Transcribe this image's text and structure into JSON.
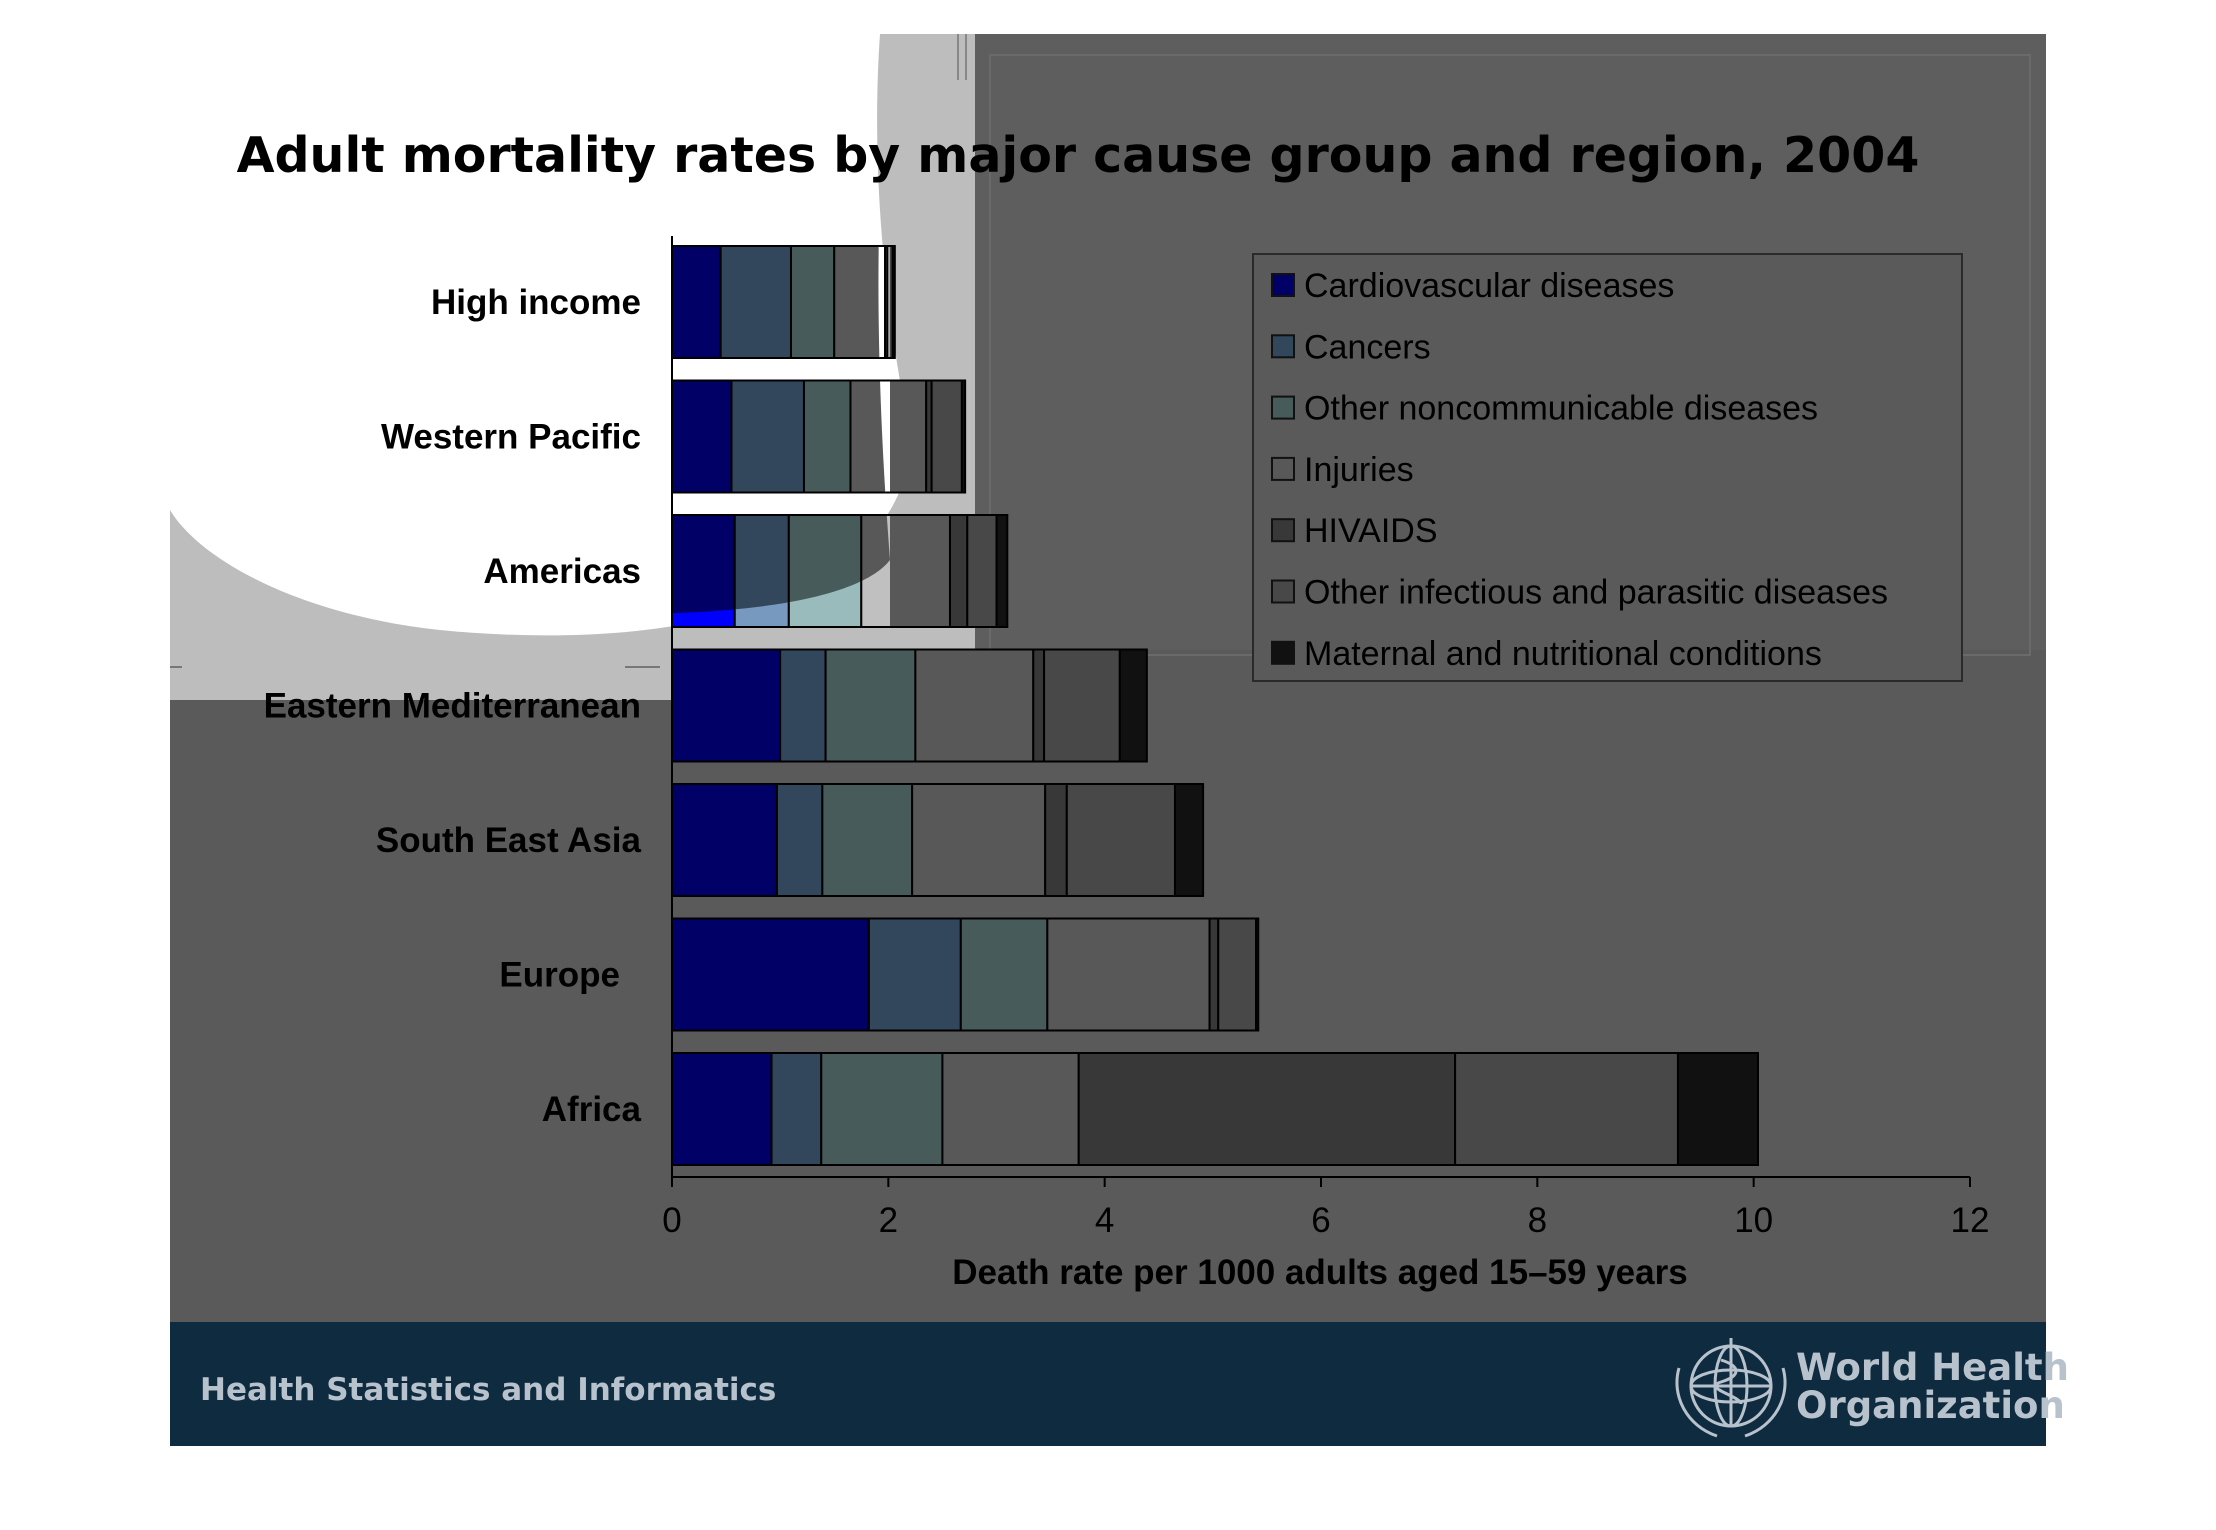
{
  "chart_data": {
    "type": "bar",
    "orientation": "horizontal",
    "stacked": true,
    "title": "Adult mortality rates by major cause group and region, 2004",
    "xlabel": "Death rate per 1000 adults aged 15–59 years",
    "ylabel": "",
    "xlim": [
      0,
      12
    ],
    "xticks": [
      0,
      2,
      4,
      6,
      8,
      10,
      12
    ],
    "grid": false,
    "legend_position": "top-right",
    "categories": [
      "High income",
      "Western Pacific",
      "Americas",
      "Eastern Mediterranean",
      "South East Asia",
      "Europe",
      "Africa"
    ],
    "series": [
      {
        "name": "Cardiovascular diseases",
        "color": "#000066",
        "values": [
          0.45,
          0.55,
          0.58,
          1.0,
          0.97,
          1.82,
          0.92
        ]
      },
      {
        "name": "Cancers",
        "color": "#33475C",
        "values": [
          0.65,
          0.67,
          0.5,
          0.42,
          0.42,
          0.85,
          0.46
        ]
      },
      {
        "name": "Other noncommunicable diseases",
        "color": "#485B5B",
        "values": [
          0.4,
          0.43,
          0.67,
          0.83,
          0.83,
          0.8,
          1.12
        ]
      },
      {
        "name": "Injuries",
        "color": "#585858",
        "values": [
          0.47,
          0.7,
          0.82,
          1.09,
          1.23,
          1.5,
          1.26
        ]
      },
      {
        "name": "HIVAIDS",
        "color": "#383838",
        "values": [
          0.02,
          0.05,
          0.16,
          0.1,
          0.2,
          0.08,
          3.48
        ]
      },
      {
        "name": "Other infectious and parasitic diseases",
        "color": "#484848",
        "values": [
          0.05,
          0.28,
          0.27,
          0.7,
          1.0,
          0.35,
          2.06
        ]
      },
      {
        "name": "Maternal and nutritional conditions",
        "color": "#111111",
        "values": [
          0.02,
          0.03,
          0.1,
          0.25,
          0.26,
          0.02,
          0.74
        ]
      }
    ]
  },
  "footer": {
    "left_text": "Health Statistics and Informatics",
    "logo_line1": "World Health",
    "logo_line2": "Organization"
  },
  "colors": {
    "slide_background": "#5A5A5A",
    "footer_band": "#0E2B40",
    "highlight_panel": "#C0C0C0"
  },
  "icons": {
    "logo": "who-emblem-icon"
  }
}
